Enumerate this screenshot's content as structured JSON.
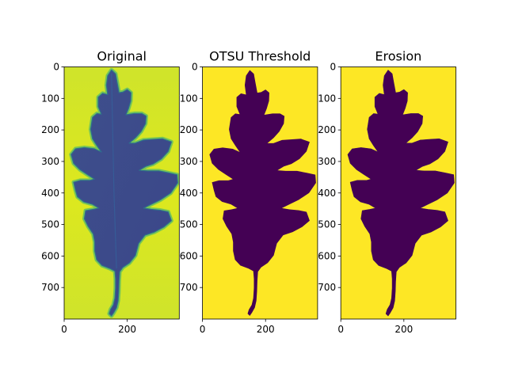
{
  "figure": {
    "panels": [
      {
        "title": "Original"
      },
      {
        "title": "OTSU Threshold"
      },
      {
        "title": "Erosion"
      }
    ]
  },
  "colors": {
    "viridis_low": "#440154",
    "viridis_high": "#fde725",
    "original_background": "#cfe42b",
    "original_background_highlight": "#dde81e",
    "original_leaf": "#3e4f8c",
    "original_leaf_dark": "#3b4689",
    "original_edge": "#23a784",
    "axis": "#000000"
  },
  "chart_data": [
    {
      "type": "heatmap",
      "title": "Original",
      "xlabel": "",
      "ylabel": "",
      "xlim": [
        0,
        365
      ],
      "ylim": [
        0,
        800
      ],
      "y_inverted": true,
      "xticks": [
        0,
        200
      ],
      "yticks": [
        0,
        100,
        200,
        300,
        400,
        500,
        600,
        700
      ],
      "colormap": "viridis",
      "content": "grayscale photo of an oak leaf; dark leaf on bright background"
    },
    {
      "type": "heatmap",
      "title": "OTSU Threshold",
      "xlabel": "",
      "ylabel": "",
      "xlim": [
        0,
        365
      ],
      "ylim": [
        0,
        800
      ],
      "y_inverted": true,
      "xticks": [
        0,
        200
      ],
      "yticks": [
        0,
        100,
        200,
        300,
        400,
        500,
        600,
        700
      ],
      "colormap": "viridis",
      "values": [
        0,
        1
      ],
      "content": "binary mask: leaf = 0 (purple), background = 1 (yellow)"
    },
    {
      "type": "heatmap",
      "title": "Erosion",
      "xlabel": "",
      "ylabel": "",
      "xlim": [
        0,
        365
      ],
      "ylim": [
        0,
        800
      ],
      "y_inverted": true,
      "xticks": [
        0,
        200
      ],
      "yticks": [
        0,
        100,
        200,
        300,
        400,
        500,
        600,
        700
      ],
      "colormap": "viridis",
      "values": [
        0,
        1
      ],
      "content": "eroded binary mask: leaf = 0 (purple), background = 1 (yellow)"
    }
  ]
}
